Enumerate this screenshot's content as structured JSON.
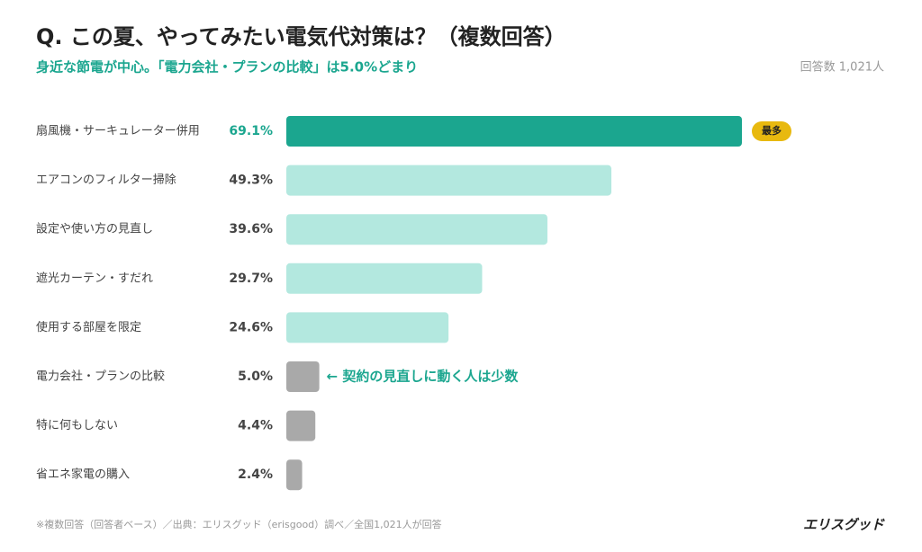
{
  "chart_data": {
    "type": "hbar",
    "title": "Q. この夏、やってみたい電気代対策は？（複数回答）",
    "subtitle": "身近な節電が中心。「電力会社・プランの比較」は5.0%どまり",
    "respondents": "回答数 1,021人",
    "categories": [
      "扇風機・サーキュレーター併用",
      "エアコンのフィルター掃除",
      "設定や使い方の見直し",
      "遮光カーテン・すだれ",
      "使用する部屋を限定",
      "電力会社・プランの比較",
      "特に何もしない",
      "省エネ家電の購入"
    ],
    "values": [
      69.1,
      49.3,
      39.6,
      29.7,
      24.6,
      5.0,
      4.4,
      2.4
    ],
    "value_labels": [
      "69.1%",
      "49.3%",
      "39.6%",
      "29.7%",
      "24.6%",
      "5.0%",
      "4.4%",
      "2.4%"
    ],
    "colors": [
      "#1ba68f",
      "#b3e8df",
      "#b3e8df",
      "#b3e8df",
      "#b3e8df",
      "#a9a9a9",
      "#a9a9a9",
      "#a9a9a9"
    ],
    "label_colors": [
      "#1ba68f",
      "#444444",
      "#444444",
      "#444444",
      "#444444",
      "#444444",
      "#444444",
      "#444444"
    ],
    "badge": "最多",
    "annotation": "← 契約の見直しに動く人は少数",
    "footnote": "※複数回答（回答者ベース）／出典：エリスグッド（erisgood）調べ／全国1,021人が回答",
    "brand": "エリスグッド"
  }
}
